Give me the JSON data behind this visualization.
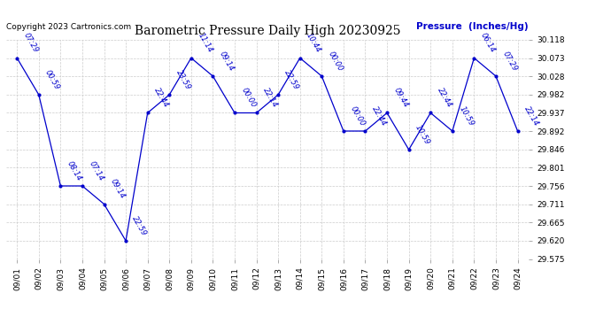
{
  "title": "Barometric Pressure Daily High 20230925",
  "ylabel": "Pressure  (Inches/Hg)",
  "copyright": "Copyright 2023 Cartronics.com",
  "ylim": [
    29.575,
    30.118
  ],
  "yticks": [
    29.575,
    29.62,
    29.665,
    29.711,
    29.756,
    29.801,
    29.846,
    29.892,
    29.937,
    29.982,
    30.028,
    30.073,
    30.118
  ],
  "dates": [
    "09/01",
    "09/02",
    "09/03",
    "09/04",
    "09/05",
    "09/06",
    "09/07",
    "09/08",
    "09/09",
    "09/10",
    "09/11",
    "09/12",
    "09/13",
    "09/14",
    "09/15",
    "09/16",
    "09/17",
    "09/18",
    "09/19",
    "09/20",
    "09/21",
    "09/22",
    "09/23",
    "09/24"
  ],
  "values": [
    30.073,
    29.982,
    29.756,
    29.756,
    29.711,
    29.62,
    29.937,
    29.982,
    30.073,
    30.028,
    29.937,
    29.937,
    29.982,
    30.073,
    30.028,
    29.892,
    29.892,
    29.937,
    29.846,
    29.937,
    29.892,
    30.073,
    30.028,
    29.892
  ],
  "time_labels": [
    "07:29",
    "00:59",
    "08:14",
    "07:14",
    "09:14",
    "22:59",
    "22:44",
    "23:59",
    "11:14",
    "09:14",
    "00:00",
    "22:14",
    "22:59",
    "10:44",
    "00:00",
    "00:00",
    "22:44",
    "09:44",
    "10:59",
    "22:44",
    "10:59",
    "06:14",
    "07:29",
    "22:14"
  ],
  "line_color": "#0000CC",
  "bg_color": "#ffffff",
  "grid_color": "#cccccc",
  "title_color": "#000000",
  "label_color": "#0000CC",
  "copyright_color": "#000000",
  "ylabel_color": "#0000CC"
}
